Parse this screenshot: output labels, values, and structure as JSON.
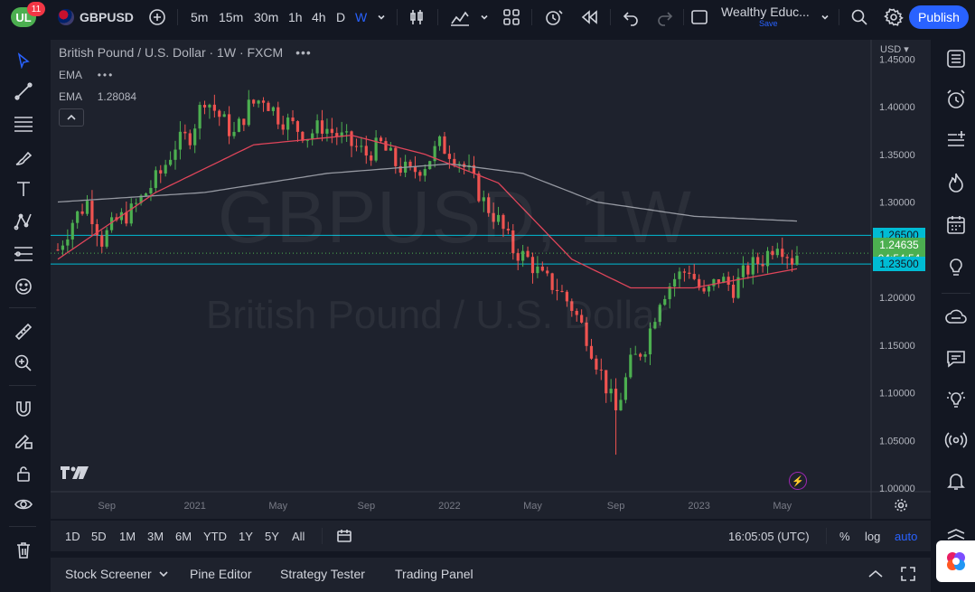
{
  "topbar": {
    "notifications_count": "11",
    "logo_text": "UL",
    "symbol": "GBPUSD",
    "timeframes": [
      "5m",
      "15m",
      "30m",
      "1h",
      "4h",
      "D",
      "W"
    ],
    "active_timeframe": "W",
    "layout_name": "Wealthy Educ...",
    "layout_save": "Save",
    "publish_label": "Publish"
  },
  "legend": {
    "title": "British Pound / U.S. Dollar · 1W · FXCM",
    "title_dots": "•••",
    "ema1_label": "EMA",
    "ema1_value": "•••",
    "ema2_label": "EMA",
    "ema2_value": "1.28084"
  },
  "watermark": {
    "symbol_line": "GBPUSD, 1W",
    "name_line": "British Pound / U.S. Dollar"
  },
  "price_axis": {
    "currency": "USD",
    "ticks": [
      "1.45000",
      "1.40000",
      "1.35000",
      "1.30000",
      "1.20000",
      "1.15000",
      "1.10000",
      "1.05000",
      "1.00000"
    ],
    "tick_values": [
      1.45,
      1.4,
      1.35,
      1.3,
      1.2,
      1.15,
      1.1,
      1.05,
      1.0
    ],
    "level_upper": "1.26500",
    "level_upper_value": 1.265,
    "level_lower": "1.23500",
    "level_lower_value": 1.235,
    "last_price": "1.24635",
    "last_price_value": 1.24635,
    "countdown": "04:54:54"
  },
  "time_axis": {
    "labels": [
      "Sep",
      "2021",
      "May",
      "Sep",
      "2022",
      "May",
      "Sep",
      "2023",
      "May"
    ]
  },
  "range_bar": {
    "ranges": [
      "1D",
      "5D",
      "1M",
      "3M",
      "6M",
      "YTD",
      "1Y",
      "5Y",
      "All"
    ],
    "clock": "16:05:05 (UTC)",
    "percent_label": "%",
    "log_label": "log",
    "auto_label": "auto"
  },
  "bottom_bar": {
    "tabs": [
      "Stock Screener",
      "Pine Editor",
      "Strategy Tester",
      "Trading Panel"
    ]
  },
  "colors": {
    "background": "#131722",
    "panel": "#1e222d",
    "bull": "#26a69a",
    "bull_fill": "#4caf50",
    "bear": "#ef5350",
    "ema_fast": "#e0455a",
    "ema_slow": "#9598a1",
    "level_line": "#00bcd4",
    "accent": "#2962ff"
  },
  "chart_data": {
    "type": "candlestick",
    "symbol": "GBPUSD",
    "interval": "1W",
    "ylim": [
      1.0,
      1.45
    ],
    "levels": [
      1.265,
      1.235
    ],
    "last_price": 1.24635,
    "ema_slow_value": 1.28084,
    "anchors_close": [
      [
        0,
        1.25
      ],
      [
        3,
        1.28
      ],
      [
        6,
        1.3
      ],
      [
        9,
        1.26
      ],
      [
        12,
        1.28
      ],
      [
        15,
        1.29
      ],
      [
        18,
        1.31
      ],
      [
        21,
        1.33
      ],
      [
        24,
        1.36
      ],
      [
        27,
        1.37
      ],
      [
        30,
        1.41
      ],
      [
        33,
        1.39
      ],
      [
        36,
        1.37
      ],
      [
        39,
        1.4
      ],
      [
        42,
        1.41
      ],
      [
        45,
        1.39
      ],
      [
        48,
        1.38
      ],
      [
        51,
        1.37
      ],
      [
        54,
        1.38
      ],
      [
        57,
        1.37
      ],
      [
        60,
        1.36
      ],
      [
        63,
        1.35
      ],
      [
        66,
        1.36
      ],
      [
        69,
        1.34
      ],
      [
        72,
        1.33
      ],
      [
        75,
        1.34
      ],
      [
        78,
        1.36
      ],
      [
        81,
        1.35
      ],
      [
        84,
        1.33
      ],
      [
        87,
        1.3
      ],
      [
        90,
        1.28
      ],
      [
        93,
        1.25
      ],
      [
        96,
        1.24
      ],
      [
        99,
        1.22
      ],
      [
        102,
        1.21
      ],
      [
        105,
        1.19
      ],
      [
        108,
        1.16
      ],
      [
        111,
        1.12
      ],
      [
        114,
        1.08
      ],
      [
        117,
        1.13
      ],
      [
        120,
        1.15
      ],
      [
        123,
        1.2
      ],
      [
        126,
        1.22
      ],
      [
        129,
        1.23
      ],
      [
        132,
        1.2
      ],
      [
        135,
        1.22
      ],
      [
        138,
        1.21
      ],
      [
        141,
        1.23
      ],
      [
        144,
        1.24
      ],
      [
        147,
        1.26
      ],
      [
        150,
        1.24
      ],
      [
        151,
        1.246
      ]
    ],
    "ema_fast_anchors": [
      [
        0,
        1.24
      ],
      [
        20,
        1.31
      ],
      [
        40,
        1.36
      ],
      [
        60,
        1.37
      ],
      [
        75,
        1.35
      ],
      [
        90,
        1.32
      ],
      [
        105,
        1.24
      ],
      [
        117,
        1.21
      ],
      [
        130,
        1.21
      ],
      [
        151,
        1.23
      ]
    ],
    "ema_slow_anchors": [
      [
        0,
        1.3
      ],
      [
        30,
        1.31
      ],
      [
        55,
        1.33
      ],
      [
        80,
        1.34
      ],
      [
        95,
        1.33
      ],
      [
        110,
        1.3
      ],
      [
        130,
        1.285
      ],
      [
        151,
        1.28
      ]
    ]
  }
}
